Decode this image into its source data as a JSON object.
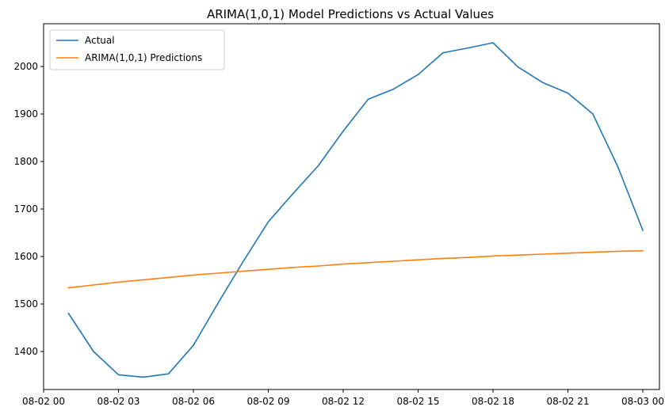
{
  "chart_data": {
    "type": "line",
    "title": "ARIMA(1,0,1) Model Predictions vs Actual Values",
    "xlabel": "",
    "ylabel": "",
    "x": [
      "08-02 01:00",
      "08-02 02:00",
      "08-02 03:00",
      "08-02 04:00",
      "08-02 05:00",
      "08-02 06:00",
      "08-02 07:00",
      "08-02 08:00",
      "08-02 09:00",
      "08-02 10:00",
      "08-02 11:00",
      "08-02 12:00",
      "08-02 13:00",
      "08-02 14:00",
      "08-02 15:00",
      "08-02 16:00",
      "08-02 17:00",
      "08-02 18:00",
      "08-02 19:00",
      "08-02 20:00",
      "08-02 21:00",
      "08-02 22:00",
      "08-02 23:00",
      "08-03 00:00"
    ],
    "xlim": [
      "08-02 00:00",
      "08-03 00:40"
    ],
    "ylim": [
      1320,
      2090
    ],
    "x_ticks": [
      {
        "x": "08-02 00:00",
        "label": "08-02 00"
      },
      {
        "x": "08-02 03:00",
        "label": "08-02 03"
      },
      {
        "x": "08-02 06:00",
        "label": "08-02 06"
      },
      {
        "x": "08-02 09:00",
        "label": "08-02 09"
      },
      {
        "x": "08-02 12:00",
        "label": "08-02 12"
      },
      {
        "x": "08-02 15:00",
        "label": "08-02 15"
      },
      {
        "x": "08-02 18:00",
        "label": "08-02 18"
      },
      {
        "x": "08-02 21:00",
        "label": "08-02 21"
      },
      {
        "x": "08-03 00:00",
        "label": "08-03 00"
      }
    ],
    "y_ticks": [
      1400,
      1500,
      1600,
      1700,
      1800,
      1900,
      2000
    ],
    "grid": false,
    "legend_position": "top-left",
    "series": [
      {
        "name": "Actual",
        "color": "#1f77b4",
        "values": [
          1480,
          1400,
          1351,
          1346,
          1353,
          1413,
          1503,
          1590,
          1673,
          1733,
          1791,
          1864,
          1931,
          1952,
          1983,
          2029,
          2039,
          2050,
          1999,
          1966,
          1944,
          1900,
          1789,
          1655
        ]
      },
      {
        "name": "ARIMA(1,0,1) Predictions",
        "color": "#ff7f0e",
        "values": [
          1534,
          1540,
          1546,
          1551,
          1556,
          1561,
          1565,
          1569,
          1573,
          1577,
          1580,
          1584,
          1587,
          1590,
          1593,
          1596,
          1598,
          1601,
          1603,
          1605,
          1607,
          1609,
          1611,
          1612
        ]
      }
    ]
  }
}
